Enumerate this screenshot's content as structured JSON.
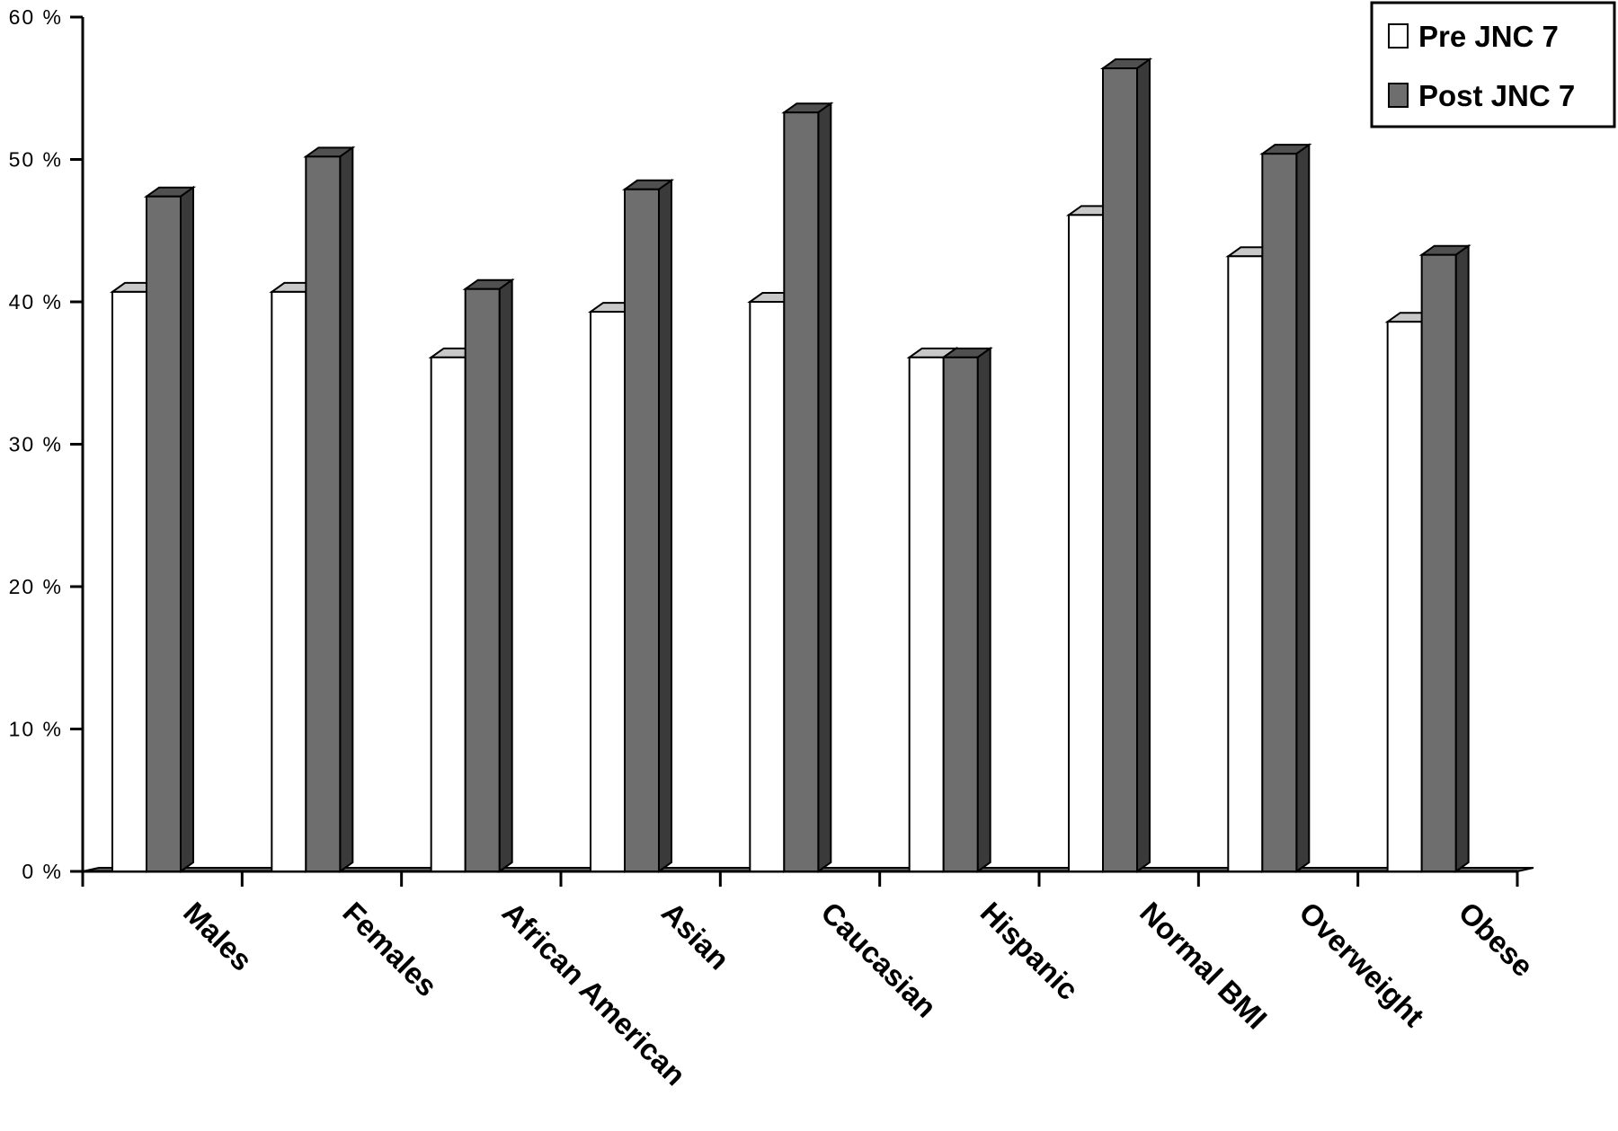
{
  "colors": {
    "pre_front": "#ffffff",
    "pre_top": "#c8c8c8",
    "pre_side": "#9a9a9a",
    "post_front": "#6e6e6e",
    "post_top": "#505050",
    "post_side": "#3a3a3a",
    "floor": "#6a6a6a",
    "axis": "#000000"
  },
  "chart_data": {
    "type": "bar",
    "title": "",
    "xlabel": "",
    "ylabel": "",
    "ylim": [
      0,
      60
    ],
    "yticks": [
      "0 %",
      "10 %",
      "20 %",
      "30 %",
      "40 %",
      "50 %",
      "60 %"
    ],
    "grid": false,
    "legend_position": "top-right",
    "categories": [
      "Males",
      "Females",
      "African American",
      "Asian",
      "Caucasian",
      "Hispanic",
      "Normal BMI",
      "Overweight",
      "Obese"
    ],
    "series": [
      {
        "name": "Pre JNC 7",
        "values": [
          40.7,
          40.7,
          36.1,
          39.3,
          40.0,
          36.1,
          46.1,
          43.2,
          38.6
        ]
      },
      {
        "name": "Post JNC 7",
        "values": [
          47.4,
          50.2,
          40.9,
          47.9,
          53.3,
          36.1,
          56.4,
          50.4,
          43.3
        ]
      }
    ]
  }
}
